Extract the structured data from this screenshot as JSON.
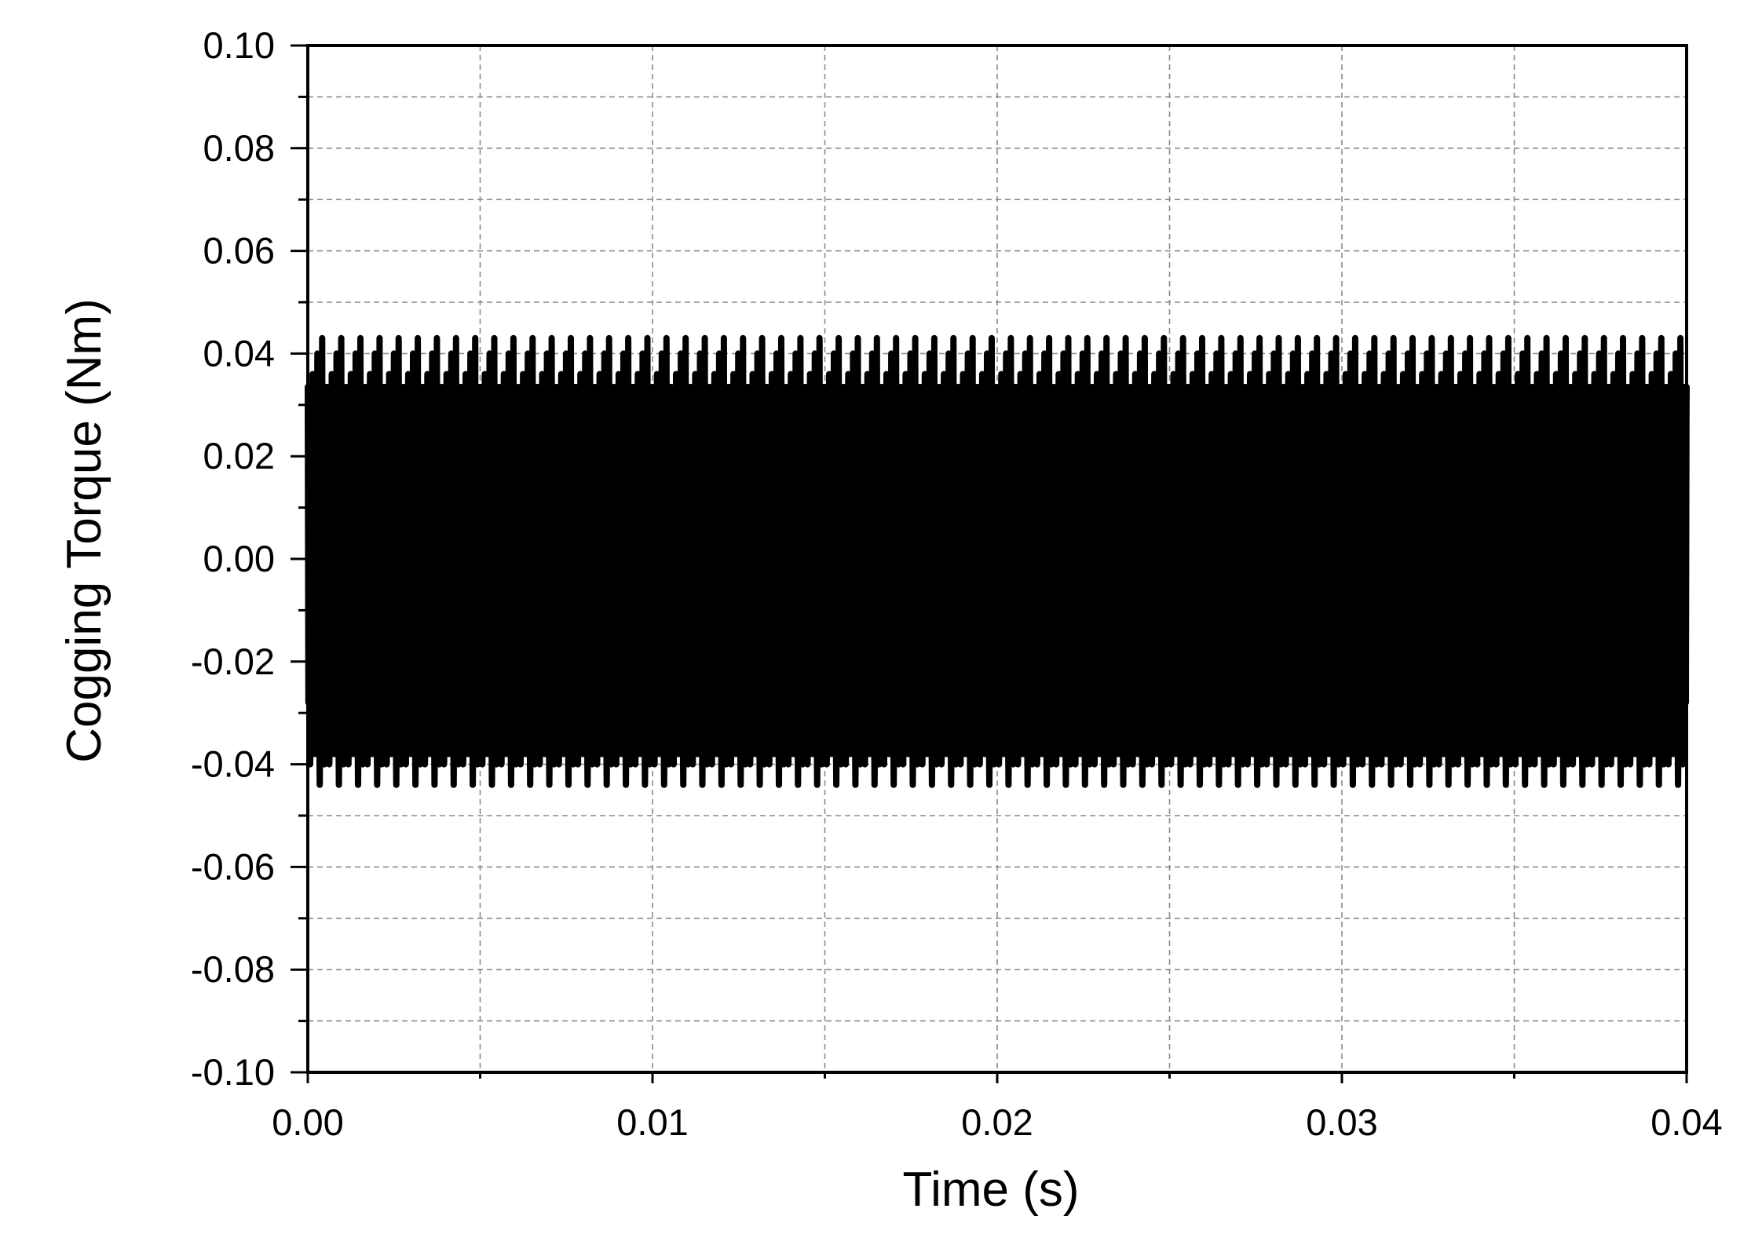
{
  "chart_data": {
    "type": "line",
    "title": "",
    "xlabel": "Time (s)",
    "ylabel": "Cogging Torque (Nm)",
    "xlim": [
      0.0,
      0.04
    ],
    "ylim": [
      -0.1,
      0.1
    ],
    "x_ticks": [
      "0.00",
      "0.01",
      "0.02",
      "0.03",
      "0.04"
    ],
    "y_ticks": [
      "0.10",
      "0.08",
      "0.06",
      "0.04",
      "0.02",
      "0.00",
      "-0.02",
      "-0.04",
      "-0.06",
      "-0.08",
      "-0.10"
    ],
    "x_tick_values": [
      0.0,
      0.01,
      0.02,
      0.03,
      0.04
    ],
    "y_tick_values": [
      0.1,
      0.08,
      0.06,
      0.04,
      0.02,
      0.0,
      -0.02,
      -0.04,
      -0.06,
      -0.08,
      -0.1
    ],
    "grid": true,
    "legend": "none",
    "line_color": "#000000",
    "series": [
      {
        "peak_period_s": 0.000555,
        "waveform": {
          "x": [
            0.0,
            6.9e-05,
            0.000139,
            0.000208,
            0.000278,
            0.000347,
            0.000416,
            0.000486,
            0.000555
          ],
          "y": [
            0.0335,
            -0.04,
            0.036,
            -0.038,
            0.04,
            -0.044,
            0.043,
            -0.04,
            0.0335
          ]
        },
        "peak_max": 0.043,
        "peak_min": -0.044
      }
    ]
  }
}
